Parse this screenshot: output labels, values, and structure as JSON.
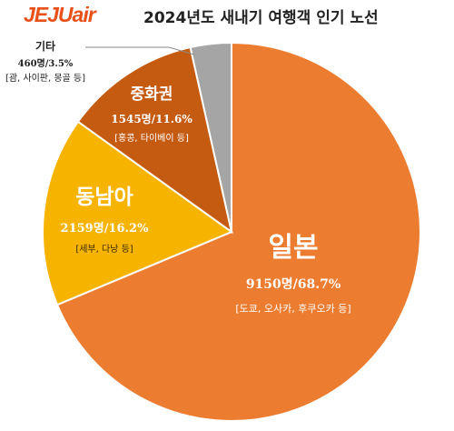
{
  "header": {
    "logo": "JEJUair",
    "title": "2024년도 새내기 여행객 인기 노선"
  },
  "colors": {
    "logo": "#e8501a",
    "japan": "#ec7c30",
    "southeast_asia": "#f6b400",
    "greater_china": "#c55a11",
    "other": "#a5a5a5"
  },
  "chart_data": {
    "type": "pie",
    "title": "2024년도 새내기 여행객 인기 노선",
    "slices": [
      {
        "label": "일본",
        "count": 9150,
        "value_label": "9150명/68.7%",
        "percent": 68.7,
        "detail": "[도쿄, 오사카, 후쿠오카 등]",
        "color": "#ec7c30"
      },
      {
        "label": "동남아",
        "count": 2159,
        "value_label": "2159명/16.2%",
        "percent": 16.2,
        "detail": "[세부, 다낭 등]",
        "color": "#f6b400"
      },
      {
        "label": "중화권",
        "count": 1545,
        "value_label": "1545명/11.6%",
        "percent": 11.6,
        "detail": "[홍콩, 타이베이 등]",
        "color": "#c55a11"
      },
      {
        "label": "기타",
        "count": 460,
        "value_label": "460명/3.5%",
        "percent": 3.5,
        "detail": "[괌, 사이판, 몽골 등]",
        "color": "#a5a5a5"
      }
    ]
  }
}
